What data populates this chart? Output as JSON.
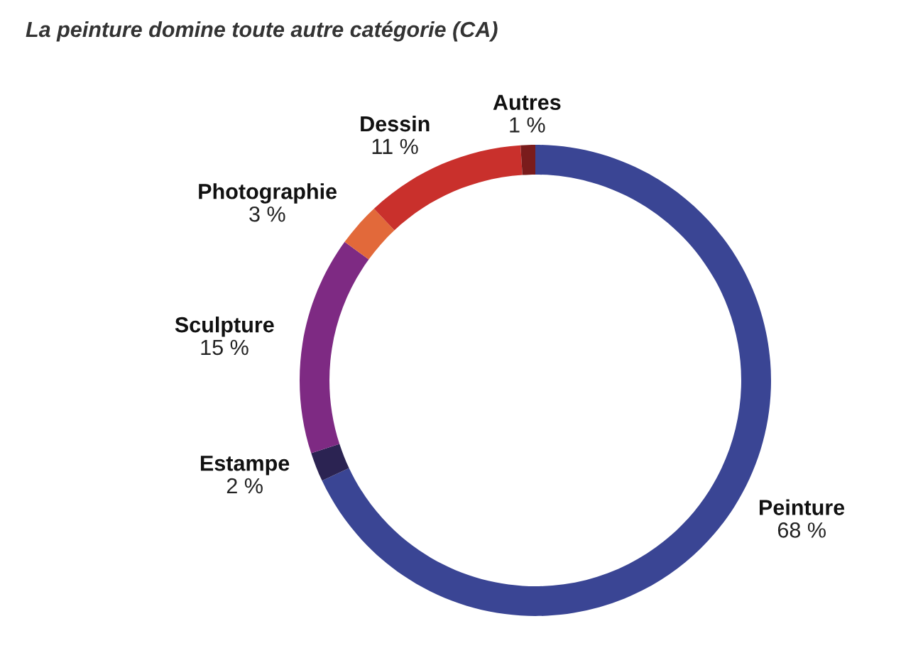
{
  "chart_data": {
    "type": "donut",
    "title": "La peinture domine toute autre catégorie (CA)",
    "categories": [
      "Peinture",
      "Estampe",
      "Sculpture",
      "Photographie",
      "Dessin",
      "Autres"
    ],
    "values": [
      68,
      2,
      15,
      3,
      11,
      1
    ],
    "colors": [
      "#3a4594",
      "#2b2352",
      "#7e2a83",
      "#e2693a",
      "#c9302c",
      "#7a1c1c"
    ],
    "value_labels": [
      "68 %",
      "2 %",
      "15 %",
      "3 %",
      "11 %",
      "1 %"
    ]
  }
}
